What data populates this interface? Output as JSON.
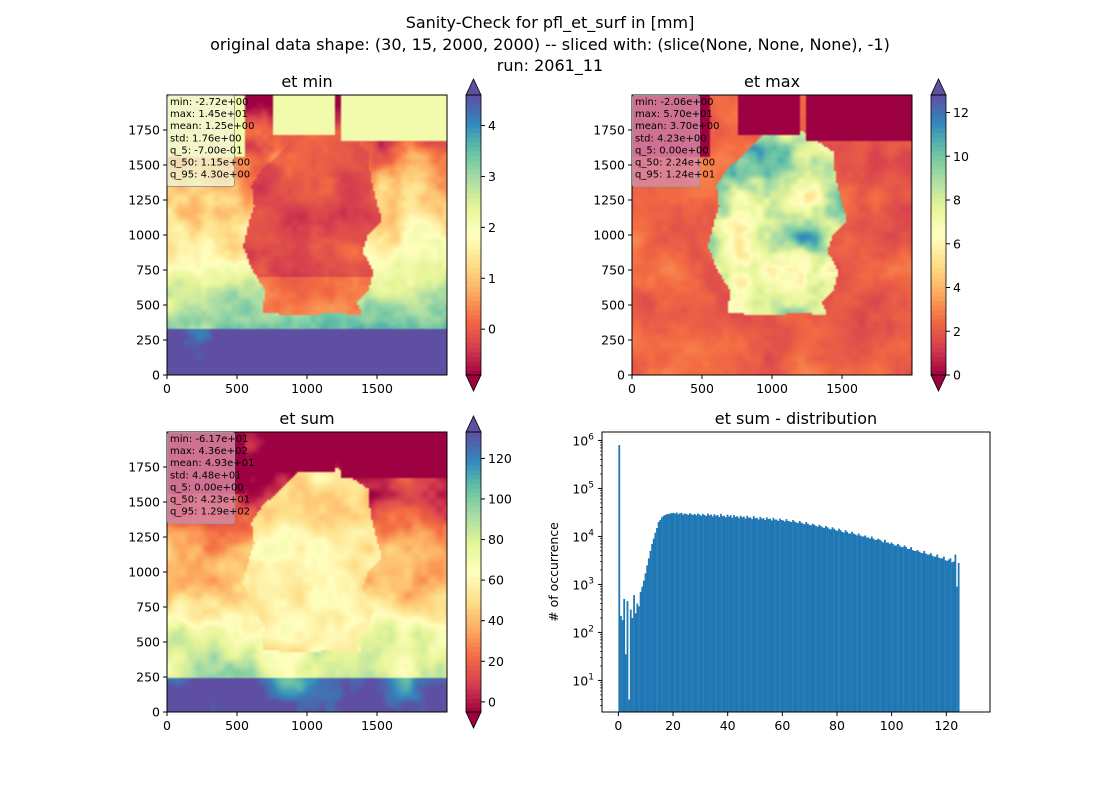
{
  "figure": {
    "suptitle_line1": "Sanity-Check for pfl_et_surf in [mm]",
    "suptitle_line2": "original data shape: (30, 15, 2000, 2000) -- sliced with: (slice(None, None, None), -1)",
    "suptitle_line3": "run: 2061_11"
  },
  "colors": {
    "cmap": "Spectral",
    "hist_bar": "#1f77b4",
    "stats_box_light": "#f3f5d0",
    "stats_box_dark": "#d98aa3"
  },
  "chart_data": [
    {
      "type": "heatmap",
      "title": "et min",
      "xlim": [
        0,
        2000
      ],
      "ylim": [
        0,
        2000
      ],
      "x_ticks": [
        "0",
        "500",
        "1000",
        "1500"
      ],
      "y_ticks": [
        "0",
        "250",
        "500",
        "750",
        "1000",
        "1250",
        "1500",
        "1750"
      ],
      "colorbar": {
        "min": -0.9,
        "max": 4.6,
        "ticks": [
          "0",
          "1",
          "2",
          "3",
          "4"
        ],
        "tick_values": [
          0,
          1,
          2,
          3,
          4
        ],
        "extend": "both"
      },
      "stats": [
        "min: -2.72e+00",
        "max: 1.45e+01",
        "mean: 1.25e+00",
        "std: 1.76e+00",
        "q_5: -7.00e-01",
        "q_50: 1.15e+00",
        "q_95: 4.30e+00"
      ]
    },
    {
      "type": "heatmap",
      "title": "et max",
      "xlim": [
        0,
        2000
      ],
      "ylim": [
        0,
        2000
      ],
      "x_ticks": [
        "0",
        "500",
        "1000",
        "1500"
      ],
      "y_ticks": [
        "0",
        "250",
        "500",
        "750",
        "1000",
        "1250",
        "1500",
        "1750"
      ],
      "colorbar": {
        "min": 0,
        "max": 12.8,
        "ticks": [
          "0",
          "2",
          "4",
          "6",
          "8",
          "10",
          "12"
        ],
        "tick_values": [
          0,
          2,
          4,
          6,
          8,
          10,
          12
        ],
        "extend": "both"
      },
      "stats": [
        "min: -2.06e+00",
        "max: 5.70e+01",
        "mean: 3.70e+00",
        "std: 4.23e+00",
        "q_5: 0.00e+00",
        "q_50: 2.24e+00",
        "q_95: 1.24e+01"
      ]
    },
    {
      "type": "heatmap",
      "title": "et sum",
      "xlim": [
        0,
        2000
      ],
      "ylim": [
        0,
        2000
      ],
      "x_ticks": [
        "0",
        "500",
        "1000",
        "1500"
      ],
      "y_ticks": [
        "0",
        "250",
        "500",
        "750",
        "1000",
        "1250",
        "1500",
        "1750"
      ],
      "colorbar": {
        "min": -5,
        "max": 133,
        "ticks": [
          "0",
          "20",
          "40",
          "60",
          "80",
          "100",
          "120"
        ],
        "tick_values": [
          0,
          20,
          40,
          60,
          80,
          100,
          120
        ],
        "extend": "both"
      },
      "stats": [
        "min: -6.17e+01",
        "max: 4.36e+02",
        "mean: 4.93e+01",
        "std: 4.48e+01",
        "q_5: 0.00e+00",
        "q_50: 4.23e+01",
        "q_95: 1.29e+02"
      ]
    },
    {
      "type": "bar",
      "title": "et sum - distribution",
      "xlabel": "",
      "ylabel": "# of occurrence",
      "yscale": "log",
      "xlim": [
        -6,
        136
      ],
      "ylim": [
        2.2,
        1500000
      ],
      "x_ticks": [
        "0",
        "20",
        "40",
        "60",
        "80",
        "100",
        "120"
      ],
      "x_tick_values": [
        0,
        20,
        40,
        60,
        80,
        100,
        120
      ],
      "y_ticks": [
        "10^1",
        "10^2",
        "10^3",
        "10^4",
        "10^5",
        "10^6"
      ],
      "y_tick_values": [
        10,
        100,
        1000,
        10000,
        100000,
        1000000
      ],
      "bin_start": 0,
      "bin_width": 0.6,
      "counts": [
        800000,
        220,
        180,
        500,
        35,
        450,
        4,
        300,
        200,
        600,
        250,
        400,
        350,
        700,
        900,
        1200,
        1700,
        2500,
        3500,
        5000,
        7000,
        9000,
        12000,
        15000,
        20000,
        22000,
        25000,
        27000,
        28000,
        29000,
        29500,
        30000,
        30500,
        31000,
        30000,
        31500,
        29000,
        30500,
        31000,
        28500,
        30000,
        29500,
        28000,
        30500,
        29000,
        28000,
        29500,
        27500,
        30000,
        28500,
        27000,
        29500,
        28000,
        26500,
        30000,
        27500,
        28500,
        26000,
        29000,
        27000,
        28000,
        25500,
        29500,
        26500,
        27000,
        25000,
        28500,
        26000,
        27500,
        24500,
        28000,
        25500,
        26500,
        24000,
        27000,
        25000,
        26000,
        23500,
        27000,
        24500,
        25000,
        23000,
        26500,
        24000,
        24500,
        22500,
        25500,
        23500,
        24000,
        22000,
        25000,
        23000,
        23500,
        21500,
        24500,
        22500,
        22500,
        21000,
        23500,
        22000,
        21500,
        20500,
        23000,
        21000,
        20500,
        20000,
        22000,
        20500,
        19500,
        19000,
        21000,
        19500,
        18500,
        18000,
        20000,
        18500,
        17500,
        17000,
        18500,
        17500,
        16500,
        16000,
        17500,
        16500,
        15500,
        15000,
        16500,
        15500,
        14500,
        14000,
        15500,
        14500,
        13500,
        13000,
        14500,
        13500,
        12500,
        12000,
        13500,
        12500,
        11500,
        11500,
        12500,
        11500,
        11000,
        10500,
        11500,
        10500,
        10000,
        10000,
        10500,
        9500,
        9500,
        9000,
        10000,
        9000,
        8500,
        8500,
        9000,
        8500,
        8000,
        7500,
        8500,
        7500,
        7500,
        7000,
        7500,
        7000,
        6500,
        6500,
        7000,
        6500,
        6000,
        6000,
        6500,
        6000,
        5500,
        5500,
        6000,
        5200,
        5000,
        5000,
        5200,
        4800,
        4600,
        4500,
        5000,
        4400,
        4200,
        4200,
        4500,
        4000,
        3800,
        3800,
        4200,
        3600,
        3500,
        3500,
        3800,
        3200,
        3100,
        3300,
        3500,
        2900,
        3000,
        4200,
        900,
        2800
      ]
    }
  ]
}
